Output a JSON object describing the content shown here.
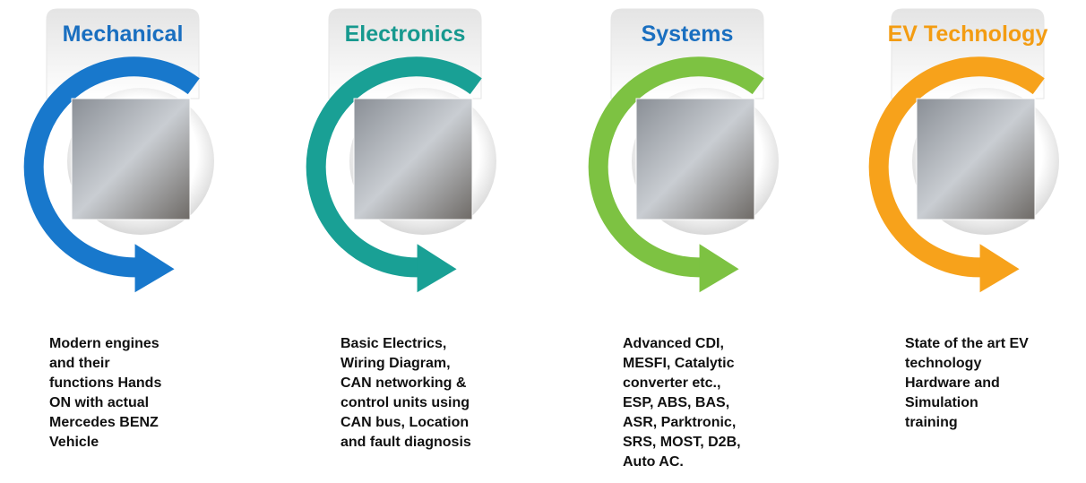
{
  "items": [
    {
      "title": "Mechanical",
      "lines": [
        "Modern engines",
        "and their",
        "functions Hands",
        "ON with actual",
        "Mercedes BENZ",
        "Vehicle"
      ]
    },
    {
      "title": "Electronics",
      "lines": [
        "Basic Electrics,",
        "Wiring Diagram,",
        "CAN  networking &",
        "control units using",
        "CAN bus, Location",
        "and fault diagnosis"
      ]
    },
    {
      "title": "Systems",
      "lines": [
        "Advanced CDI,",
        "MESFI, Catalytic",
        "converter etc.,",
        "ESP, ABS,  BAS,",
        "ASR,  Parktronic,",
        "SRS,  MOST, D2B,",
        "Auto AC."
      ]
    },
    {
      "title": "EV Technology",
      "lines": [
        "State of the art EV",
        "technology",
        "Hardware and",
        "Simulation",
        "training"
      ]
    }
  ]
}
